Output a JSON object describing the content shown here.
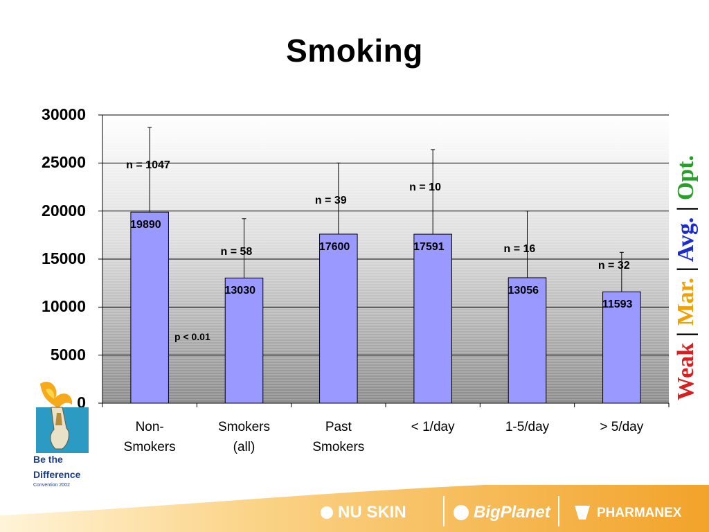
{
  "title": "Smoking",
  "chart_data": {
    "type": "bar",
    "categories": [
      [
        "Non-",
        "Smokers"
      ],
      [
        "Smokers",
        "(all)"
      ],
      [
        "Past",
        "Smokers"
      ],
      [
        "< 1/day"
      ],
      [
        "1-5/day"
      ],
      [
        "> 5/day"
      ]
    ],
    "values": [
      19890,
      13030,
      17600,
      17591,
      13056,
      11593
    ],
    "value_labels": [
      "19890",
      "13030",
      "17600",
      "17591",
      "13056",
      "11593"
    ],
    "error_upper": [
      28700,
      19200,
      25000,
      26400,
      20000,
      15700
    ],
    "n_labels": [
      "n = 1047",
      "n = 58",
      "n = 39",
      "n = 10",
      "n = 16",
      "n = 32"
    ],
    "annotation": "p < 0.01",
    "yticks": [
      "0",
      "5000",
      "10000",
      "15000",
      "20000",
      "25000",
      "30000"
    ],
    "ylim": [
      0,
      30000
    ],
    "grid": true,
    "bar_color": "#9999ff"
  },
  "scale_legend": [
    {
      "text": "Weak",
      "color": "#d81e1e"
    },
    {
      "text": "|",
      "color": "#000000"
    },
    {
      "text": "Mar.",
      "color": "#f0a000"
    },
    {
      "text": "|",
      "color": "#000000"
    },
    {
      "text": "Avg.",
      "color": "#1a2ccc"
    },
    {
      "text": "|",
      "color": "#000000"
    },
    {
      "text": "Opt.",
      "color": "#2a9e2a"
    }
  ],
  "logo": {
    "line1": "Be the",
    "line2": "Difference",
    "line3": "Convention 2002"
  },
  "footer": {
    "brand1": "NU SKIN",
    "brand2": "BigPlanet",
    "brand3": "PHARMANEX",
    "reg": "®"
  }
}
